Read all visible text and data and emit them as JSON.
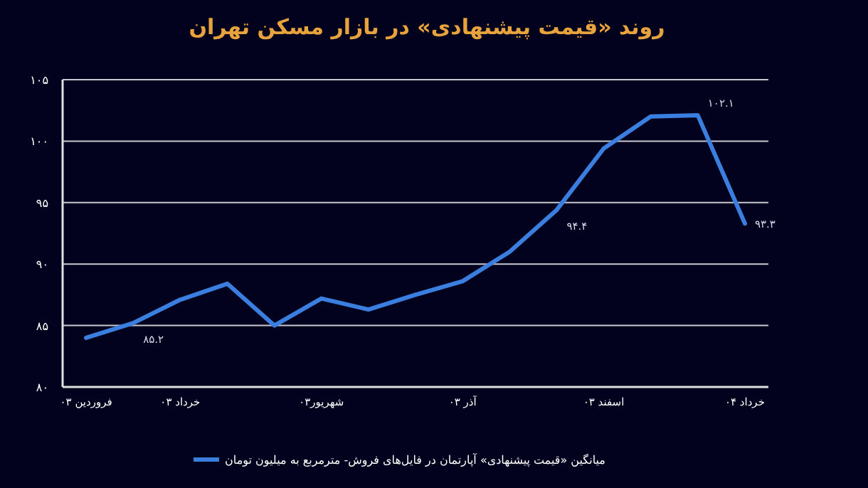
{
  "chart_data": {
    "type": "line",
    "title": "روند «قیمت پیشنهادی» در بازار مسکن تهران",
    "categories": [
      "فروردین ۰۳",
      null,
      "خرداد ۰۳",
      null,
      null,
      "شهریور۰۳",
      null,
      null,
      "آذر ۰۳",
      null,
      null,
      "اسفند ۰۳",
      null,
      null,
      "خرداد ۰۴"
    ],
    "series": [
      {
        "name": "میانگین «قیمت پیشنهادی» آپارتمان در فایل‌های فروش- مترمربع به میلیون تومان",
        "color": "#3a7fe0",
        "values": [
          84.0,
          85.2,
          87.1,
          88.4,
          85.0,
          87.2,
          86.3,
          87.5,
          88.6,
          91.0,
          94.4,
          99.4,
          102.0,
          102.1,
          93.3
        ],
        "value_labels": [
          null,
          "۸۵.۲",
          null,
          null,
          null,
          null,
          null,
          null,
          null,
          null,
          "۹۴.۴",
          null,
          null,
          "۱۰۲.۱",
          "۹۳.۳"
        ]
      }
    ],
    "ylim": [
      80,
      105
    ],
    "yticks": [
      {
        "value": 80,
        "label": "۸۰"
      },
      {
        "value": 85,
        "label": "۸۵"
      },
      {
        "value": 90,
        "label": "۹۰"
      },
      {
        "value": 95,
        "label": "۹۵"
      },
      {
        "value": 100,
        "label": "۱۰۰"
      },
      {
        "value": 105,
        "label": "۱۰۵"
      }
    ],
    "grid": "y",
    "legend": "bottom",
    "marker": "none",
    "line_style": "solid"
  }
}
